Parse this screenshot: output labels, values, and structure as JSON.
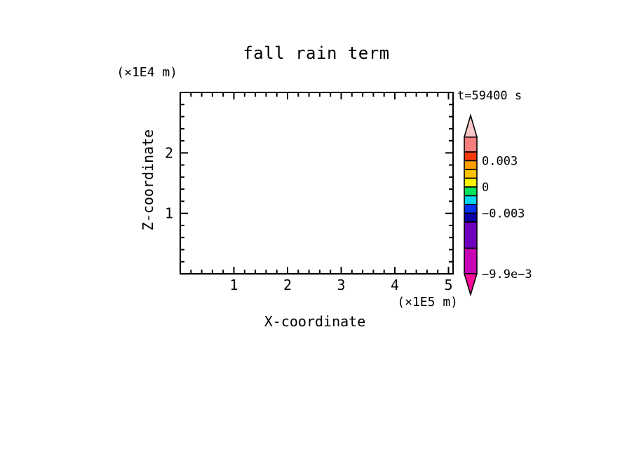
{
  "chart_data": {
    "type": "heatmap",
    "title": "fall rain term",
    "xlabel": "X-coordinate",
    "ylabel": "Z-coordinate",
    "x_unit": "(×1E5 m)",
    "y_unit": "(×1E4 m)",
    "time_annotation": "t=59400 s",
    "xlim": [
      0,
      5.1
    ],
    "ylim": [
      0,
      3
    ],
    "x_ticks": [
      1,
      2,
      3,
      4,
      5
    ],
    "y_ticks": [
      1,
      2
    ],
    "x_minor_step": 0.2,
    "y_minor_step": 0.2,
    "grid": false,
    "plot_content": "empty plot area — no shaded contour values visible at this time step",
    "colorbar": {
      "position": "right",
      "labels": [
        {
          "value": 0.003,
          "text": "0.003"
        },
        {
          "value": 0,
          "text": "0"
        },
        {
          "value": -0.003,
          "text": "−0.003"
        },
        {
          "value": -0.0099,
          "text": "−9.9e−3"
        }
      ],
      "segments": [
        {
          "from": 0.004,
          "to": 0.0057,
          "color": "#f67e7e"
        },
        {
          "from": 0.003,
          "to": 0.004,
          "color": "#fb3a0c"
        },
        {
          "from": 0.002,
          "to": 0.003,
          "color": "#ff9e00"
        },
        {
          "from": 0.001,
          "to": 0.002,
          "color": "#fdc100"
        },
        {
          "from": 0.0,
          "to": 0.001,
          "color": "#fbf400"
        },
        {
          "from": -0.001,
          "to": 0.0,
          "color": "#00e35c"
        },
        {
          "from": -0.002,
          "to": -0.001,
          "color": "#00d7ef"
        },
        {
          "from": -0.003,
          "to": -0.002,
          "color": "#0031f2"
        },
        {
          "from": -0.004,
          "to": -0.003,
          "color": "#0c00a6"
        },
        {
          "from": -0.007,
          "to": -0.004,
          "color": "#6f00be"
        },
        {
          "from": -0.0099,
          "to": -0.007,
          "color": "#c603b5"
        }
      ],
      "over_color": "#f8c6c6",
      "under_color": "#f90a99"
    }
  }
}
